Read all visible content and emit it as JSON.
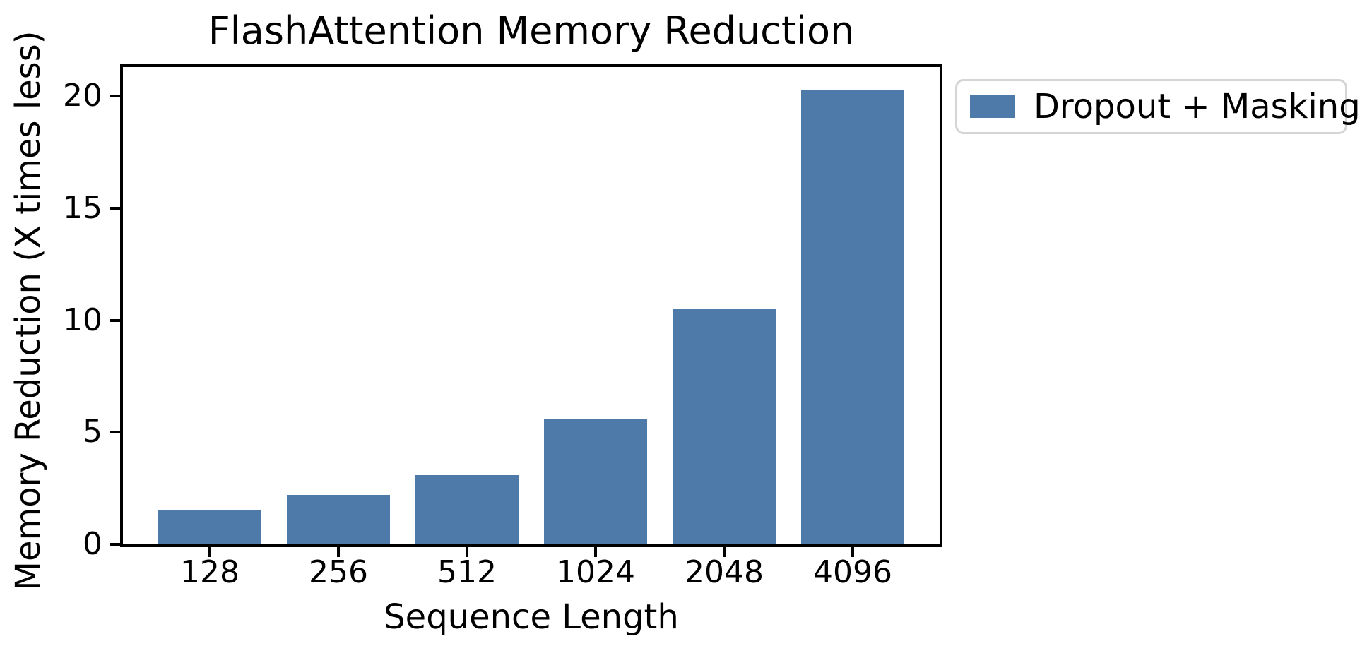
{
  "chart_data": {
    "type": "bar",
    "title": "FlashAttention Memory Reduction",
    "xlabel": "Sequence Length",
    "ylabel": "Memory Reduction (X times less)",
    "categories": [
      "128",
      "256",
      "512",
      "1024",
      "2048",
      "4096"
    ],
    "series": [
      {
        "name": "Dropout + Masking",
        "values": [
          1.5,
          2.2,
          3.1,
          5.6,
          10.5,
          20.3
        ],
        "color": "#4d7aa8"
      }
    ],
    "yticks": [
      0,
      5,
      10,
      15,
      20
    ],
    "ylim": [
      0,
      21.3
    ],
    "grid": false,
    "legend_position": "upper-right-outside",
    "colors": {
      "bar": "#4d7aa8",
      "axis": "#000000",
      "text": "#000000",
      "legend_border": "#d5d5d5",
      "background": "#ffffff"
    }
  }
}
